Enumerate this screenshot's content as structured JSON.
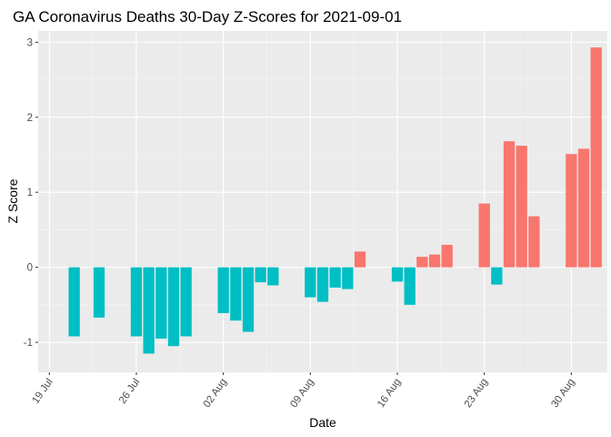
{
  "chart_data": {
    "type": "bar",
    "title": "GA Coronavirus Deaths 30-Day Z-Scores for 2021-09-01",
    "xlabel": "Date",
    "ylabel": "Z Score",
    "ylim": [
      -1.4,
      3.15
    ],
    "y_ticks": [
      -1,
      0,
      1,
      2,
      3
    ],
    "y_tick_labels": [
      "-1",
      "0",
      "1",
      "2",
      "3"
    ],
    "x_range_days": [
      -0.9,
      44.9
    ],
    "x_ticks": [
      {
        "day": 0,
        "label": "19 Jul"
      },
      {
        "day": 7,
        "label": "26 Jul"
      },
      {
        "day": 14,
        "label": "02 Aug"
      },
      {
        "day": 21,
        "label": "09 Aug"
      },
      {
        "day": 28,
        "label": "16 Aug"
      },
      {
        "day": 35,
        "label": "23 Aug"
      },
      {
        "day": 42,
        "label": "30 Aug"
      }
    ],
    "x_origin_date": "2021-07-19",
    "colors": {
      "positive": "#F8766D",
      "negative": "#00BFC4",
      "panel": "#EBEBEB",
      "grid_major": "#FFFFFF",
      "grid_minor": "#F5F5F5"
    },
    "series": [
      {
        "name": "Z Score",
        "points": [
          {
            "date": "2021-07-21",
            "day": 2,
            "value": -0.92
          },
          {
            "date": "2021-07-23",
            "day": 4,
            "value": -0.67
          },
          {
            "date": "2021-07-26",
            "day": 7,
            "value": -0.92
          },
          {
            "date": "2021-07-27",
            "day": 8,
            "value": -1.15
          },
          {
            "date": "2021-07-28",
            "day": 9,
            "value": -0.95
          },
          {
            "date": "2021-07-29",
            "day": 10,
            "value": -1.05
          },
          {
            "date": "2021-07-30",
            "day": 11,
            "value": -0.92
          },
          {
            "date": "2021-08-02",
            "day": 14,
            "value": -0.61
          },
          {
            "date": "2021-08-03",
            "day": 15,
            "value": -0.71
          },
          {
            "date": "2021-08-04",
            "day": 16,
            "value": -0.86
          },
          {
            "date": "2021-08-05",
            "day": 17,
            "value": -0.2
          },
          {
            "date": "2021-08-06",
            "day": 18,
            "value": -0.24
          },
          {
            "date": "2021-08-09",
            "day": 21,
            "value": -0.4
          },
          {
            "date": "2021-08-10",
            "day": 22,
            "value": -0.46
          },
          {
            "date": "2021-08-11",
            "day": 23,
            "value": -0.27
          },
          {
            "date": "2021-08-12",
            "day": 24,
            "value": -0.29
          },
          {
            "date": "2021-08-13",
            "day": 25,
            "value": 0.21
          },
          {
            "date": "2021-08-16",
            "day": 28,
            "value": -0.19
          },
          {
            "date": "2021-08-17",
            "day": 29,
            "value": -0.5
          },
          {
            "date": "2021-08-18",
            "day": 30,
            "value": 0.14
          },
          {
            "date": "2021-08-19",
            "day": 31,
            "value": 0.17
          },
          {
            "date": "2021-08-20",
            "day": 32,
            "value": 0.3
          },
          {
            "date": "2021-08-23",
            "day": 35,
            "value": 0.85
          },
          {
            "date": "2021-08-24",
            "day": 36,
            "value": -0.23
          },
          {
            "date": "2021-08-25",
            "day": 37,
            "value": 1.68
          },
          {
            "date": "2021-08-26",
            "day": 38,
            "value": 1.62
          },
          {
            "date": "2021-08-27",
            "day": 39,
            "value": 0.68
          },
          {
            "date": "2021-08-30",
            "day": 42,
            "value": 1.51
          },
          {
            "date": "2021-08-31",
            "day": 43,
            "value": 1.58
          },
          {
            "date": "2021-09-01",
            "day": 44,
            "value": 2.93
          }
        ]
      }
    ],
    "grid": true,
    "legend": "none"
  }
}
